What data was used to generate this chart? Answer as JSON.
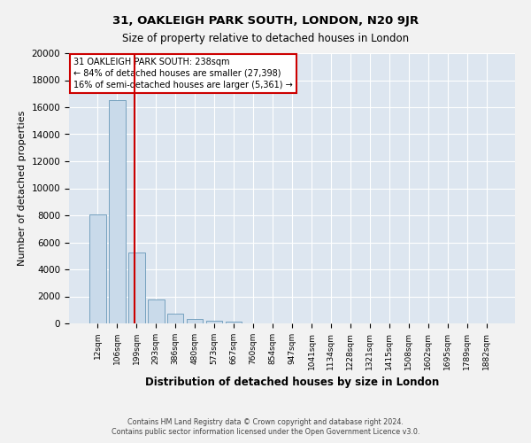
{
  "title": "31, OAKLEIGH PARK SOUTH, LONDON, N20 9JR",
  "subtitle": "Size of property relative to detached houses in London",
  "xlabel": "Distribution of detached houses by size in London",
  "ylabel": "Number of detached properties",
  "bar_labels": [
    "12sqm",
    "106sqm",
    "199sqm",
    "293sqm",
    "386sqm",
    "480sqm",
    "573sqm",
    "667sqm",
    "760sqm",
    "854sqm",
    "947sqm",
    "1041sqm",
    "1134sqm",
    "1228sqm",
    "1321sqm",
    "1415sqm",
    "1508sqm",
    "1602sqm",
    "1695sqm",
    "1789sqm",
    "1882sqm"
  ],
  "bar_values": [
    8050,
    16500,
    5250,
    1750,
    750,
    300,
    200,
    100,
    0,
    0,
    0,
    0,
    0,
    0,
    0,
    0,
    0,
    0,
    0,
    0,
    0
  ],
  "bar_color": "#c9daea",
  "bar_edge_color": "#6898b8",
  "background_color": "#dde6f0",
  "grid_color": "#ffffff",
  "ylim": [
    0,
    20000
  ],
  "yticks": [
    0,
    2000,
    4000,
    6000,
    8000,
    10000,
    12000,
    14000,
    16000,
    18000,
    20000
  ],
  "property_line_color": "#cc0000",
  "annotation_line1": "31 OAKLEIGH PARK SOUTH: 238sqm",
  "annotation_line2": "← 84% of detached houses are smaller (27,398)",
  "annotation_line3": "16% of semi-detached houses are larger (5,361) →",
  "annotation_box_color": "#cc0000",
  "footer_line1": "Contains HM Land Registry data © Crown copyright and database right 2024.",
  "footer_line2": "Contains public sector information licensed under the Open Government Licence v3.0."
}
